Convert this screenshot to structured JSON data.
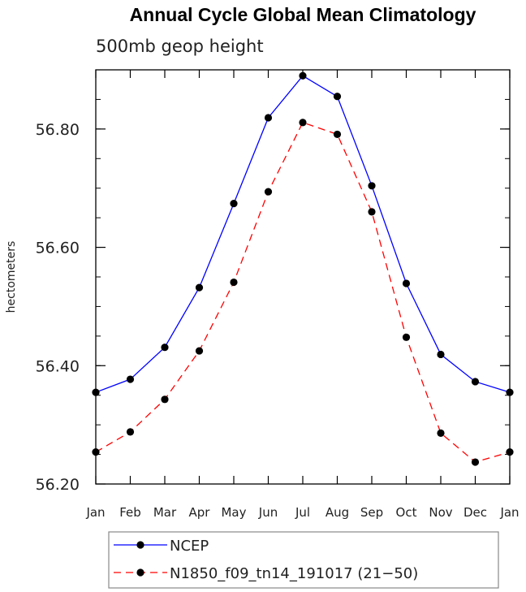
{
  "chart_data": {
    "type": "line",
    "title": "Annual Cycle Global Mean Climatology",
    "subtitle": "500mb geop height",
    "xlabel": "",
    "ylabel": "hectometers",
    "categories": [
      "Jan",
      "Feb",
      "Mar",
      "Apr",
      "May",
      "Jun",
      "Jul",
      "Aug",
      "Sep",
      "Oct",
      "Nov",
      "Dec",
      "Jan"
    ],
    "ylim": [
      56.2,
      56.9
    ],
    "yticks": [
      "56.20",
      "56.40",
      "56.60",
      "56.80"
    ],
    "ytick_values": [
      56.2,
      56.4,
      56.6,
      56.8
    ],
    "series": [
      {
        "name": "NCEP",
        "color": "#0000ff",
        "dash": "solid",
        "values": [
          56.355,
          56.377,
          56.431,
          56.532,
          56.674,
          56.819,
          56.89,
          56.855,
          56.704,
          56.539,
          56.419,
          56.373,
          56.355
        ]
      },
      {
        "name": "N1850_f09_tn14_191017 (21−50)",
        "color": "#ff0000",
        "dash": "dashed",
        "values": [
          56.254,
          56.288,
          56.343,
          56.425,
          56.541,
          56.694,
          56.811,
          56.791,
          56.66,
          56.448,
          56.286,
          56.237,
          56.254
        ]
      }
    ],
    "legend_position": "bottom-left"
  }
}
